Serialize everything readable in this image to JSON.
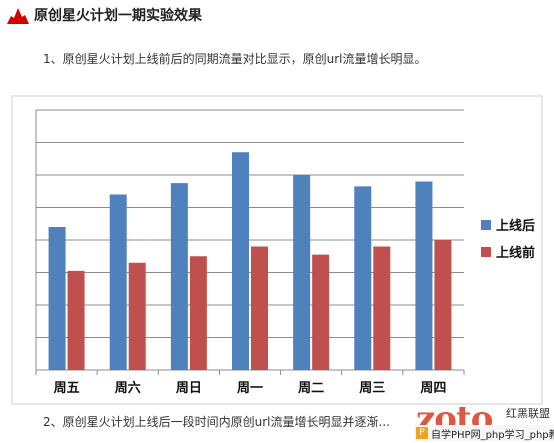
{
  "header": {
    "title": "原创星火计划一期实验效果"
  },
  "paragraphs": {
    "p1": "1、原创星火计划上线前后的同期流量对比显示，原创url流量增长明显。",
    "p2": "2、原创星火计划上线后一段时间内原创url流量增长明显并逐渐..."
  },
  "watermark": {
    "logo_text": "zoto",
    "site_name": "红黑联盟",
    "bar_text": "自学PHP网_php学习_php教程"
  },
  "colors": {
    "series_after": "#4f81bd",
    "series_before": "#c0504d",
    "header_icon": "#d40000"
  },
  "chart_data": {
    "type": "bar",
    "categories": [
      "周五",
      "周六",
      "周日",
      "周一",
      "周二",
      "周三",
      "周四"
    ],
    "series": [
      {
        "name": "上线后",
        "values": [
          4.4,
          5.4,
          5.75,
          6.7,
          6.0,
          5.65,
          5.8
        ]
      },
      {
        "name": "上线前",
        "values": [
          3.05,
          3.3,
          3.5,
          3.8,
          3.55,
          3.8,
          4.0
        ]
      }
    ],
    "title": "",
    "xlabel": "",
    "ylabel": "",
    "ylim": [
      0,
      8
    ],
    "yticks": [
      0,
      1,
      2,
      3,
      4,
      5,
      6,
      7,
      8
    ],
    "ytick_labels_visible": false,
    "grid": true,
    "legend": "right"
  }
}
